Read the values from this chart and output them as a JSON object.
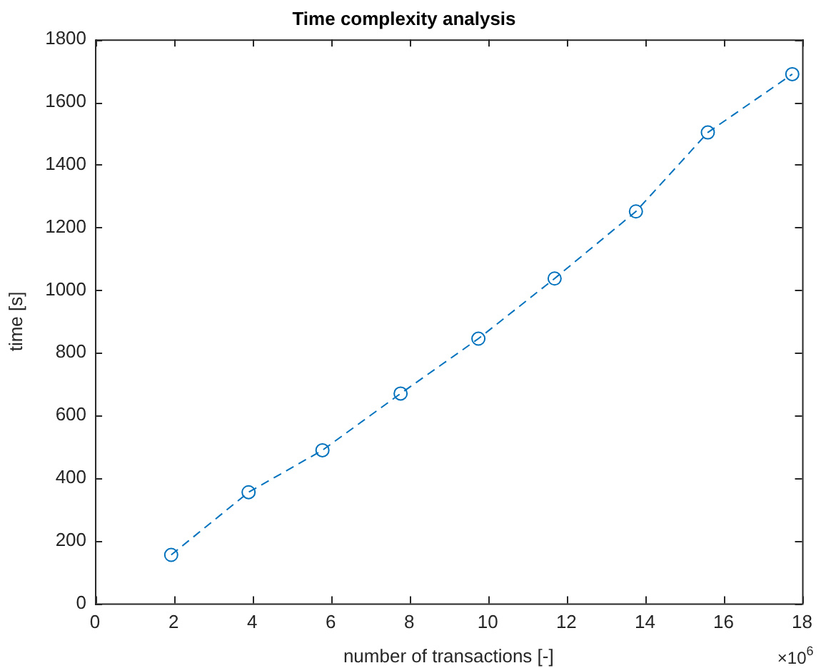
{
  "chart_data": {
    "type": "line",
    "title": "Time complexity analysis",
    "xlabel": "number of transactions [-]",
    "ylabel": "time [s]",
    "x": [
      1.94,
      3.91,
      5.79,
      7.78,
      9.76,
      11.7,
      13.77,
      15.6,
      17.75
    ],
    "series": [
      {
        "color": "#0072bd",
        "values": [
          155,
          355,
          489,
          670,
          845,
          1037,
          1251,
          1503,
          1689
        ]
      }
    ],
    "xlim": [
      0,
      18
    ],
    "xticks": [
      0,
      2,
      4,
      6,
      8,
      10,
      12,
      14,
      16,
      18
    ],
    "ylim": [
      0,
      1800
    ],
    "yticks": [
      0,
      200,
      400,
      600,
      800,
      1000,
      1200,
      1400,
      1600,
      1800
    ],
    "annotations": [
      "×10$^{6}$"
    ],
    "grid": false,
    "legend": false,
    "marker": "circle",
    "line_style": "dashed"
  }
}
